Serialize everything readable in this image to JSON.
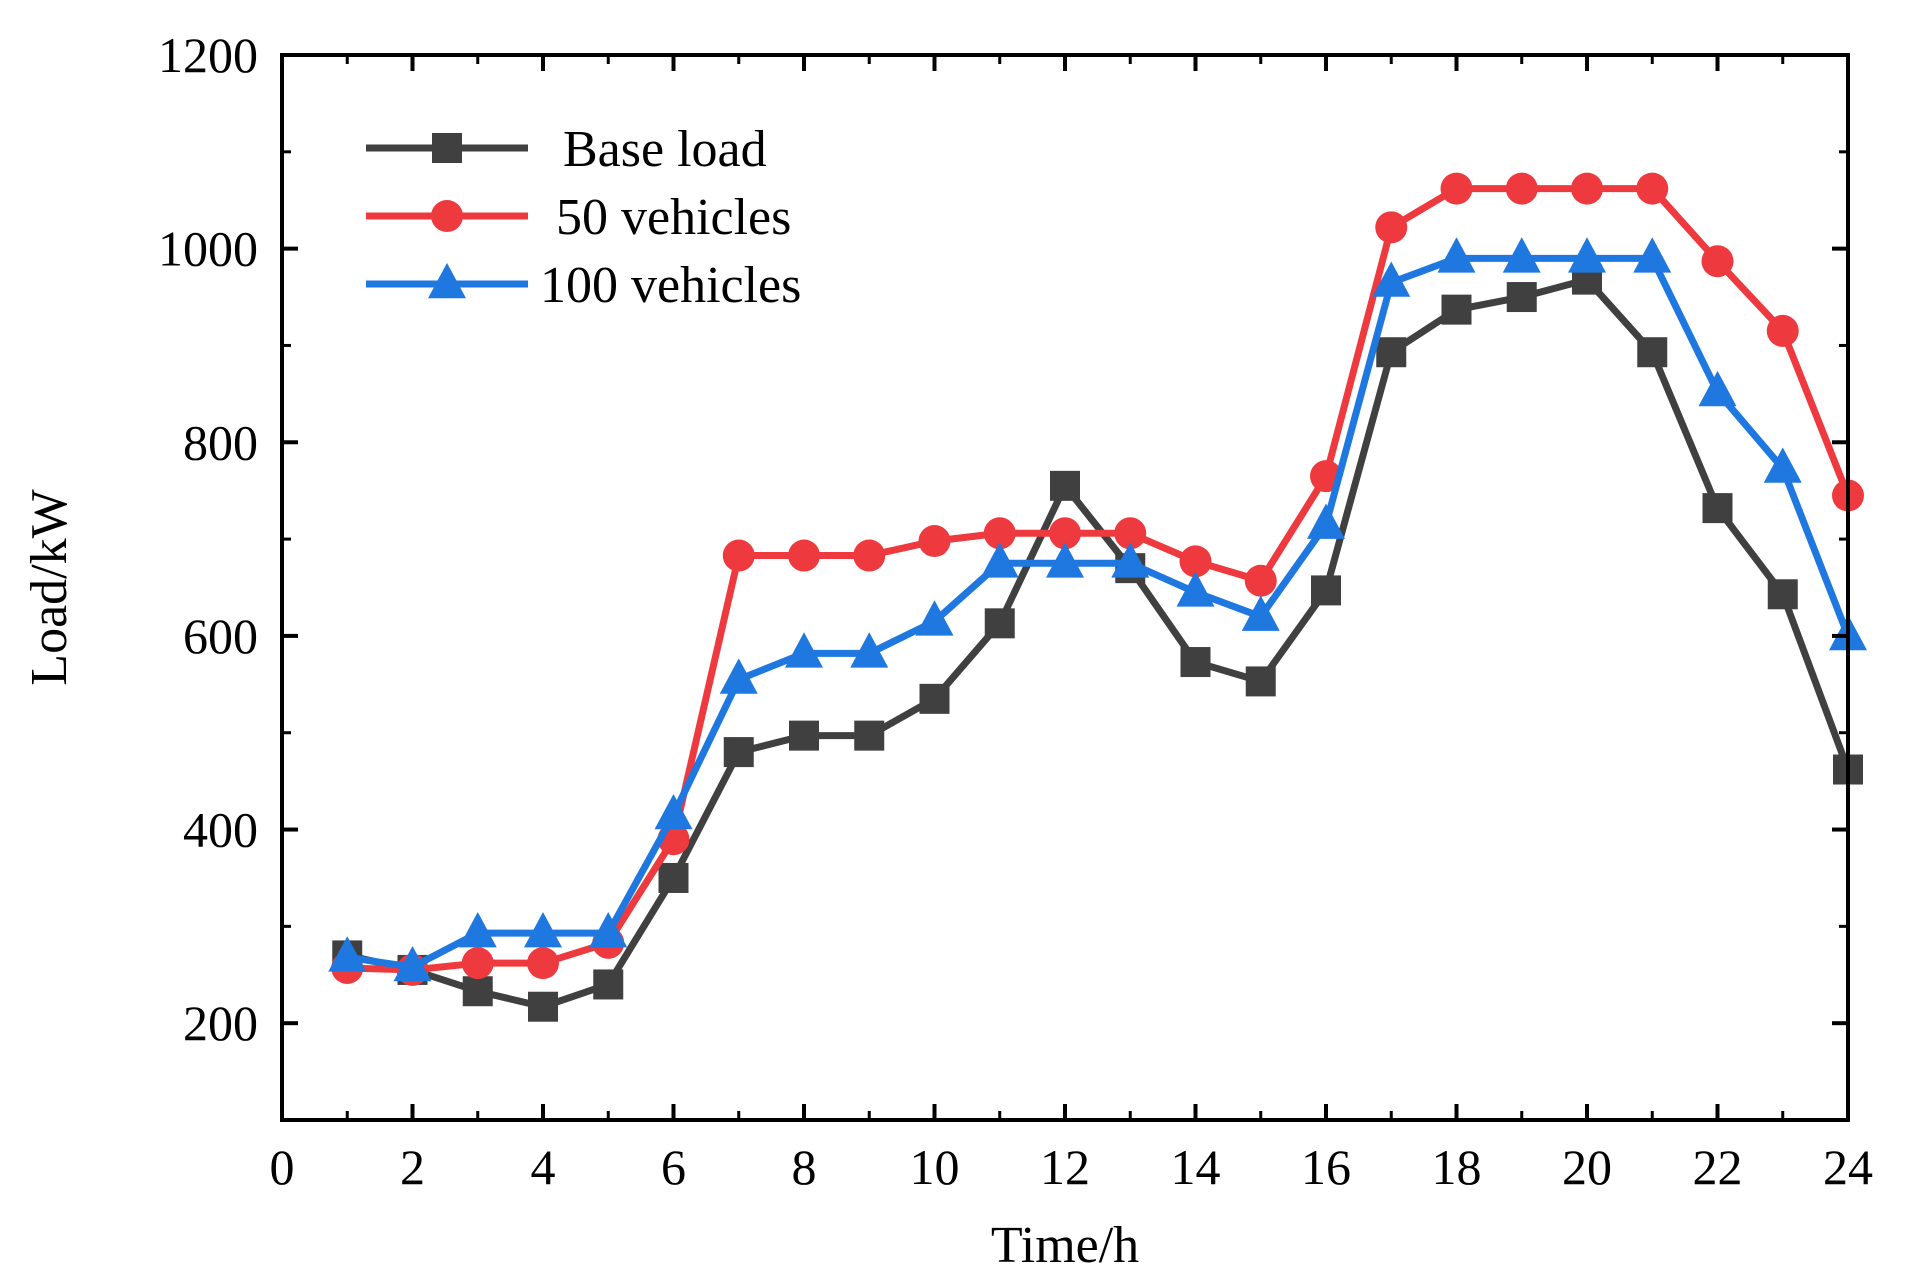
{
  "chart_data": {
    "type": "line",
    "title": "",
    "xlabel": "Time/h",
    "ylabel": "Load/kW",
    "xlim": [
      0,
      24
    ],
    "ylim": [
      100,
      1200
    ],
    "xticks": [
      0,
      2,
      4,
      6,
      8,
      10,
      12,
      14,
      16,
      18,
      20,
      22,
      24
    ],
    "xtick_labels": [
      "0",
      "2",
      "4",
      "6",
      "8",
      "10",
      "12",
      "14",
      "16",
      "18",
      "20",
      "22",
      "24"
    ],
    "yticks": [
      200,
      400,
      600,
      800,
      1000,
      1200
    ],
    "ytick_labels": [
      "200",
      "400",
      "600",
      "800",
      "1000",
      "1200"
    ],
    "grid": false,
    "legend_position": "top-left",
    "x": [
      1,
      2,
      3,
      4,
      5,
      6,
      7,
      8,
      9,
      10,
      11,
      12,
      13,
      14,
      15,
      16,
      17,
      18,
      19,
      20,
      21,
      22,
      23,
      24
    ],
    "series": [
      {
        "name": "Base load",
        "color": "#404040",
        "marker": "square",
        "values": [
          270,
          255,
          233,
          217,
          240,
          350,
          480,
          497,
          497,
          535,
          613,
          755,
          670,
          573,
          553,
          647,
          893,
          937,
          950,
          968,
          893,
          732,
          643,
          462
        ]
      },
      {
        "name": "50 vehicles",
        "color": "#ee3a3e",
        "marker": "circle",
        "values": [
          257,
          255,
          262,
          262,
          283,
          390,
          683,
          683,
          683,
          698,
          706,
          706,
          706,
          677,
          657,
          765,
          1022,
          1062,
          1062,
          1062,
          1062,
          987,
          915,
          745
        ]
      },
      {
        "name": "100 vehicles",
        "color": "#1f78e0",
        "marker": "triangle",
        "values": [
          268,
          258,
          293,
          293,
          293,
          415,
          555,
          582,
          582,
          615,
          675,
          675,
          675,
          645,
          620,
          715,
          965,
          990,
          990,
          990,
          990,
          852,
          773,
          600
        ]
      }
    ]
  }
}
